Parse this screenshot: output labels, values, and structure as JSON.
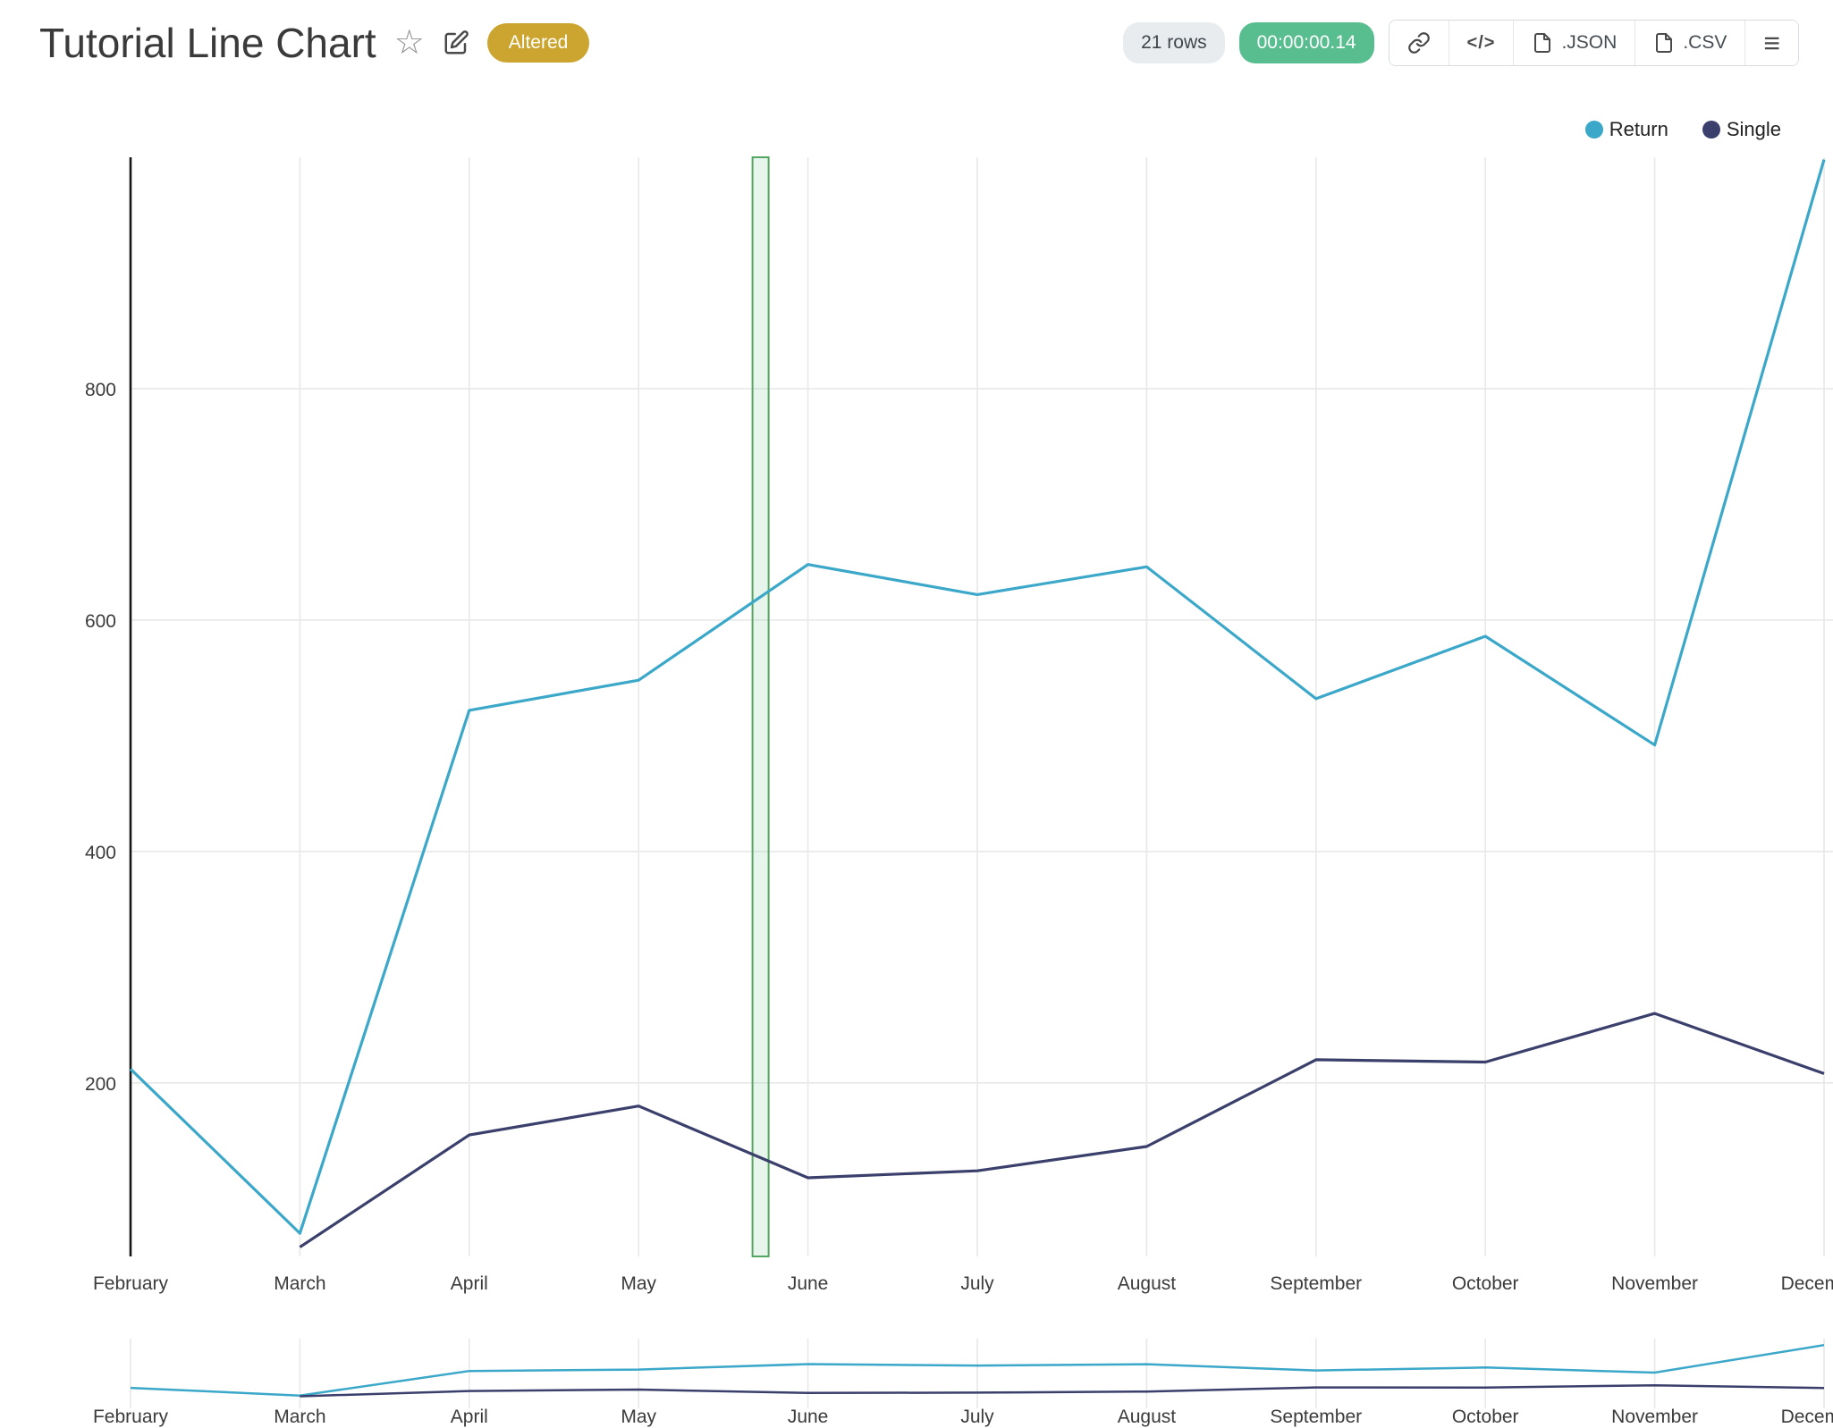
{
  "header": {
    "title": "Tutorial Line Chart",
    "badge": "Altered"
  },
  "toolbar": {
    "row_count": "21 rows",
    "runtime": "00:00:00.14",
    "json_label": ".JSON",
    "csv_label": ".CSV"
  },
  "icons": {
    "star": "☆",
    "code": "</>",
    "menu": "≡"
  },
  "colors": {
    "badge_bg": "#CBA52F",
    "timer_bg": "#58BE90",
    "rows_pill_bg": "#E9ECEF",
    "return_series": "#3BA7C9",
    "single_series": "#3A3F6B",
    "band_border": "#53A662",
    "band_fill": "rgba(120,198,150,0.18)"
  },
  "chart_data": {
    "type": "line",
    "title": "Tutorial Line Chart",
    "x": [
      "February",
      "March",
      "April",
      "May",
      "June",
      "July",
      "August",
      "September",
      "October",
      "November",
      "December"
    ],
    "series": [
      {
        "name": "Return",
        "color": "#3BA7C9",
        "values": [
          212,
          70,
          522,
          548,
          648,
          622,
          646,
          532,
          586,
          492,
          998
        ]
      },
      {
        "name": "Single",
        "color": "#3A3F6B",
        "values": [
          null,
          58,
          155,
          180,
          118,
          124,
          145,
          220,
          218,
          260,
          208
        ]
      }
    ],
    "xlabel": "",
    "ylabel": "",
    "yticks": [
      200,
      400,
      600,
      800
    ],
    "ylim": [
      50,
      1000
    ],
    "grid": true,
    "legend": [
      "Return",
      "Single"
    ],
    "legend_position": "top-right",
    "highlight_band": {
      "between": [
        "May",
        "June"
      ],
      "fraction": 0.72
    },
    "has_mini_overview": true
  }
}
